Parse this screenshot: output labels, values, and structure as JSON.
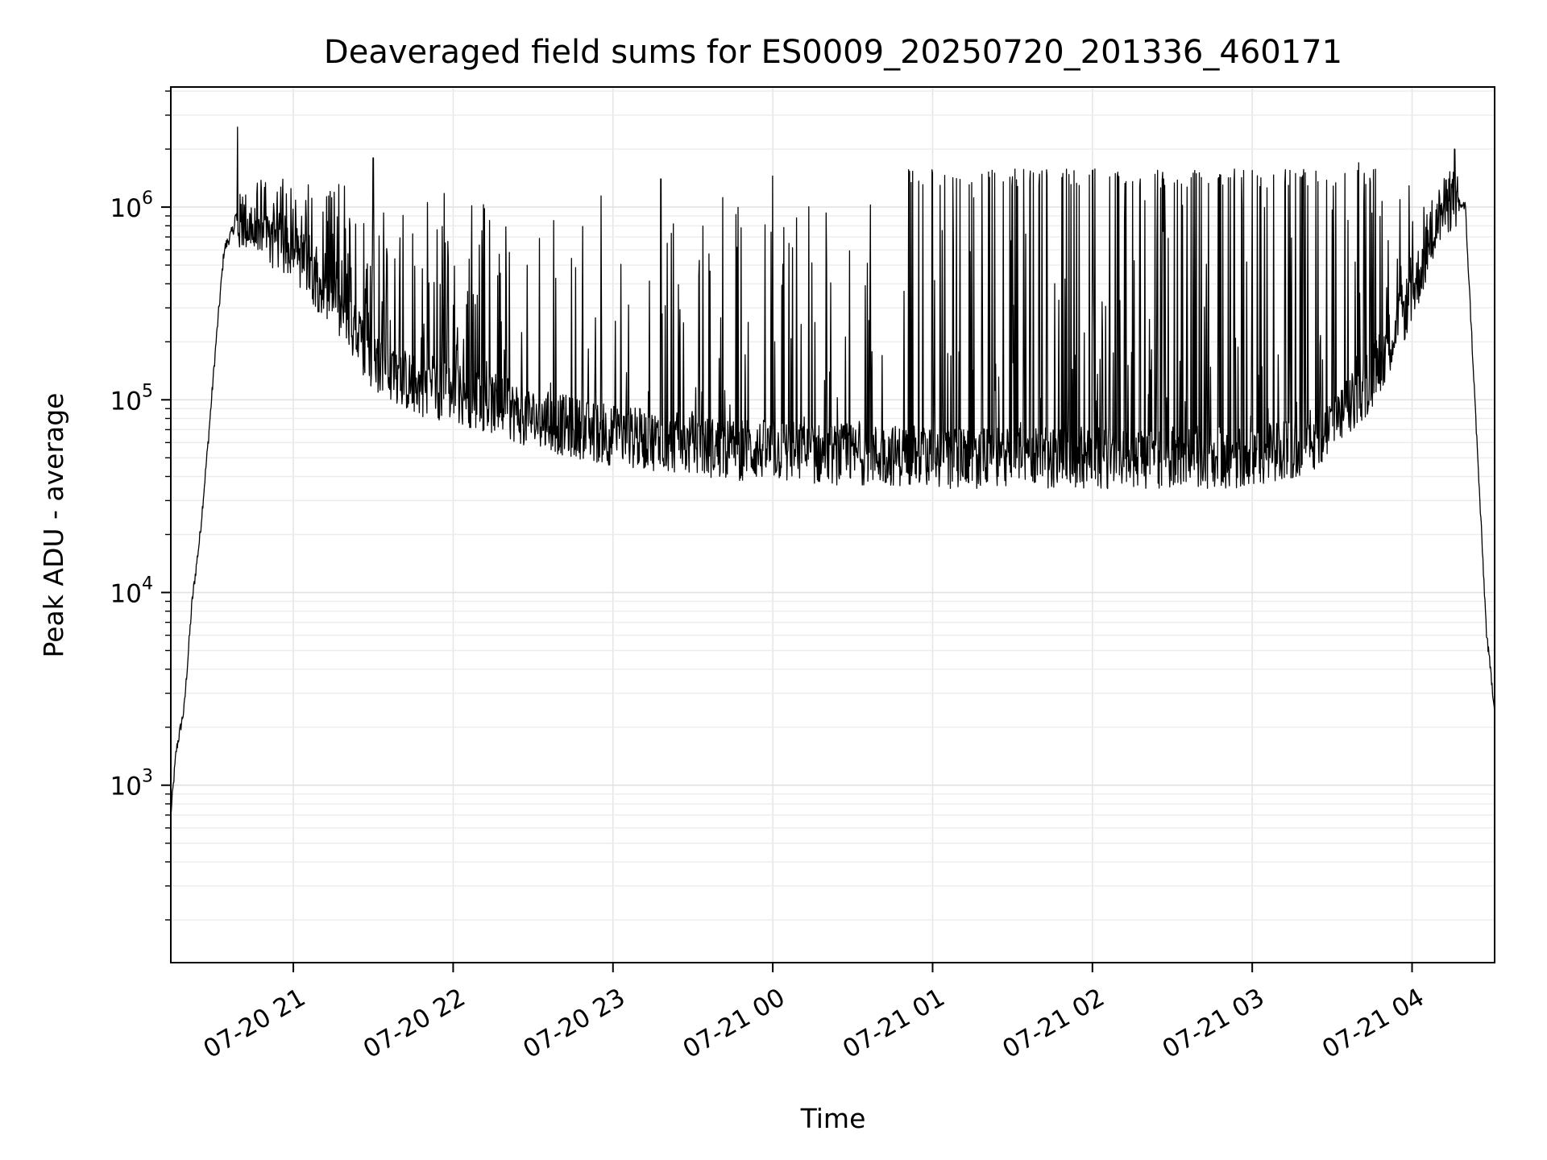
{
  "chart_data": {
    "type": "line",
    "title": "Deaveraged field sums for ES0009_20250720_201336_460171",
    "xlabel": "Time",
    "ylabel": "Peak ADU - average",
    "yscale": "log",
    "ylim": [
      120,
      4200000
    ],
    "xlim": [
      "2025-07-20 20:14",
      "2025-07-21 04:31"
    ],
    "grid": true,
    "x_ticks": [
      "07-20 21",
      "07-20 22",
      "07-20 23",
      "07-21 00",
      "07-21 01",
      "07-21 02",
      "07-21 03",
      "07-21 04"
    ],
    "y_ticks": [
      {
        "base": "10",
        "exp": "3",
        "value": 1000
      },
      {
        "base": "10",
        "exp": "4",
        "value": 10000
      },
      {
        "base": "10",
        "exp": "5",
        "value": 100000
      },
      {
        "base": "10",
        "exp": "6",
        "value": 1000000
      }
    ],
    "line_color": "#000000",
    "series": [
      {
        "x": [
          "2025-07-20 20:14",
          "2025-07-20 20:16",
          "2025-07-20 20:19",
          "2025-07-20 20:22",
          "2025-07-20 20:25",
          "2025-07-20 20:28",
          "2025-07-20 20:31",
          "2025-07-20 20:34",
          "2025-07-20 20:38",
          "2025-07-20 20:42",
          "2025-07-20 20:46",
          "2025-07-20 20:50",
          "2025-07-20 20:55",
          "2025-07-20 21:00",
          "2025-07-20 21:10",
          "2025-07-20 21:20",
          "2025-07-20 21:30",
          "2025-07-20 21:45",
          "2025-07-20 22:00",
          "2025-07-20 22:15",
          "2025-07-20 22:30",
          "2025-07-20 22:45",
          "2025-07-20 23:00",
          "2025-07-20 23:15",
          "2025-07-20 23:30",
          "2025-07-20 23:45",
          "2025-07-21 00:00",
          "2025-07-21 00:20",
          "2025-07-21 00:40",
          "2025-07-21 01:00",
          "2025-07-21 01:30",
          "2025-07-21 02:00",
          "2025-07-21 02:30",
          "2025-07-21 03:00",
          "2025-07-21 03:15",
          "2025-07-21 03:30",
          "2025-07-21 03:45",
          "2025-07-21 04:00",
          "2025-07-21 04:10",
          "2025-07-21 04:15",
          "2025-07-21 04:20",
          "2025-07-21 04:25",
          "2025-07-21 04:28",
          "2025-07-21 04:31"
        ],
        "y": [
          700,
          1500,
          2500,
          9000,
          20000,
          60000,
          200000,
          600000,
          800000,
          850000,
          700000,
          700000,
          650000,
          600000,
          400000,
          250000,
          160000,
          120000,
          110000,
          95000,
          80000,
          72000,
          65000,
          62000,
          58000,
          55000,
          55000,
          52000,
          52000,
          50000,
          50000,
          50000,
          50000,
          50000,
          55000,
          70000,
          130000,
          350000,
          900000,
          1100000,
          1000000,
          40000,
          6000,
          2500
        ],
        "spikes": [
          {
            "x": "2025-07-20 20:39",
            "y": 2600000
          },
          {
            "x": "2025-07-20 21:30",
            "y": 1800000
          },
          {
            "x": "2025-07-20 23:18",
            "y": 1400000
          },
          {
            "x": "2025-07-21 00:00",
            "y": 1450000
          },
          {
            "x": "2025-07-21 01:00",
            "y": 1500000
          },
          {
            "x": "2025-07-21 02:00",
            "y": 1550000
          },
          {
            "x": "2025-07-21 03:00",
            "y": 1550000
          },
          {
            "x": "2025-07-21 03:40",
            "y": 1700000
          },
          {
            "x": "2025-07-21 04:16",
            "y": 2000000
          }
        ]
      }
    ]
  }
}
